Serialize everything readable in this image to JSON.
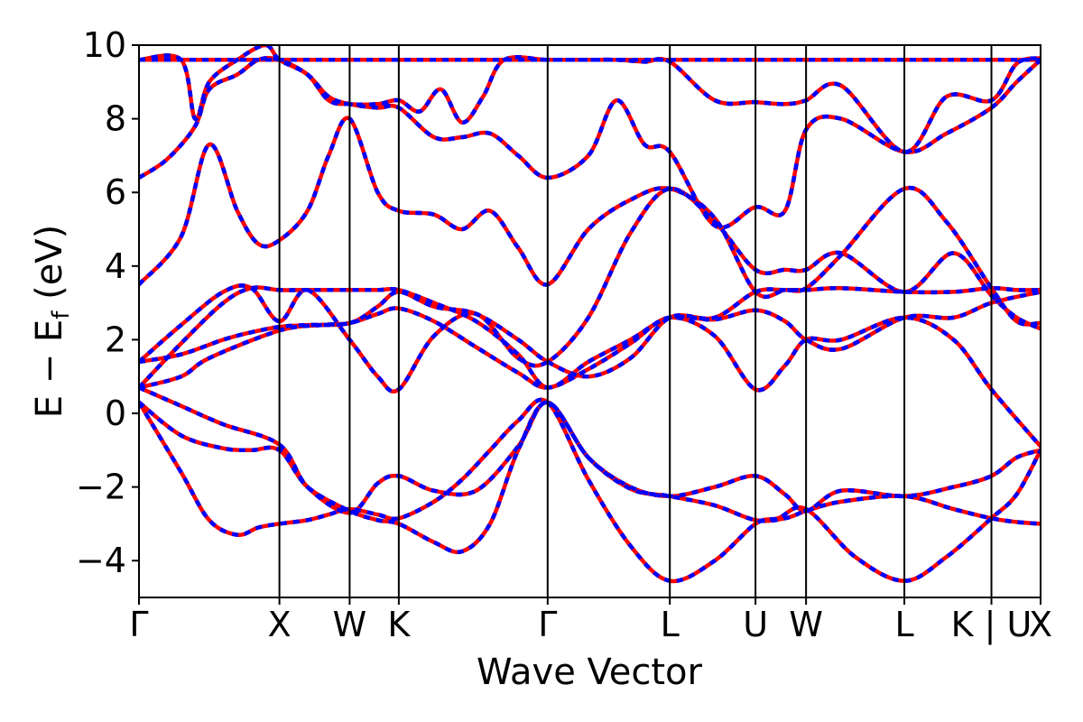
{
  "chart_data": {
    "type": "line",
    "title": "",
    "xlabel": "Wave Vector",
    "ylabel_main": "E − E",
    "ylabel_sub": "f",
    "ylabel_unit": " (eV)",
    "ylim": [
      -5,
      10
    ],
    "yticks": [
      -4,
      -2,
      0,
      2,
      4,
      6,
      8,
      10
    ],
    "ytick_labels": [
      "−4",
      "−2",
      "0",
      "2",
      "4",
      "6",
      "8",
      "10"
    ],
    "xlim": [
      0,
      6.42
    ],
    "kpoints": [
      {
        "label": "Γ",
        "x": 0.0
      },
      {
        "label": "X",
        "x": 1.0
      },
      {
        "label": "W",
        "x": 1.5
      },
      {
        "label": "K",
        "x": 1.85
      },
      {
        "label": "Γ",
        "x": 2.91
      },
      {
        "label": "L",
        "x": 3.78
      },
      {
        "label": "U",
        "x": 4.39
      },
      {
        "label": "W",
        "x": 4.75
      },
      {
        "label": "L",
        "x": 5.45
      },
      {
        "label": "K | U",
        "x": 6.07
      },
      {
        "label": "X",
        "x": 6.42
      }
    ],
    "series": [
      {
        "color": "#ff0000",
        "style": "solid",
        "x": [
          0,
          0.3,
          0.5,
          0.7,
          0.85,
          1.0,
          1.2,
          1.35,
          1.5,
          1.7,
          1.85,
          2.1,
          2.3,
          2.5,
          2.7,
          2.91,
          3.2,
          3.5,
          3.78,
          4.1,
          4.39,
          4.55,
          4.75,
          5.1,
          5.45,
          5.75,
          6.07,
          6.25,
          6.42
        ],
        "values": [
          0.3,
          -1.6,
          -2.9,
          -3.3,
          -3.1,
          -3.0,
          -2.9,
          -2.75,
          -2.6,
          -2.75,
          -2.85,
          -2.4,
          -1.8,
          -1.0,
          -0.2,
          0.3,
          -1.8,
          -3.6,
          -4.55,
          -4.0,
          -3.0,
          -2.85,
          -2.6,
          -3.9,
          -4.55,
          -3.9,
          -2.85,
          -2.2,
          -1.0
        ]
      },
      {
        "color": "#ff0000",
        "style": "solid",
        "x": [
          0,
          0.3,
          0.6,
          0.8,
          1.0,
          1.2,
          1.5,
          1.7,
          1.85,
          2.1,
          2.3,
          2.5,
          2.7,
          2.91,
          3.2,
          3.5,
          3.78,
          4.1,
          4.39,
          4.6,
          4.75,
          5.0,
          5.45,
          5.8,
          6.07,
          6.25,
          6.42
        ],
        "values": [
          0.3,
          -0.6,
          -0.95,
          -1.0,
          -1.0,
          -2.0,
          -2.65,
          -2.9,
          -3.0,
          -3.5,
          -3.75,
          -3.0,
          -1.0,
          0.3,
          -1.2,
          -2.0,
          -2.25,
          -2.0,
          -1.7,
          -2.2,
          -2.65,
          -2.1,
          -2.25,
          -2.0,
          -1.7,
          -1.2,
          -1.0
        ]
      },
      {
        "color": "#ff0000",
        "style": "solid",
        "x": [
          0,
          0.3,
          0.6,
          1.0,
          1.2,
          1.5,
          1.7,
          1.85,
          2.1,
          2.4,
          2.7,
          2.91,
          3.2,
          3.5,
          3.78,
          4.1,
          4.39,
          4.6,
          4.75,
          5.0,
          5.45,
          5.8,
          6.07,
          6.25,
          6.42
        ],
        "values": [
          0.7,
          0.2,
          -0.3,
          -0.85,
          -2.0,
          -2.7,
          -1.9,
          -1.7,
          -2.1,
          -2.1,
          -0.9,
          0.3,
          -1.2,
          -2.05,
          -2.25,
          -2.5,
          -2.9,
          -2.85,
          -2.65,
          -2.4,
          -2.25,
          -2.6,
          -2.85,
          -2.95,
          -3.0
        ]
      },
      {
        "color": "#ff0000",
        "style": "solid",
        "x": [
          0,
          0.3,
          0.5,
          1.0,
          1.3,
          1.5,
          1.7,
          1.85,
          2.1,
          2.4,
          2.7,
          2.91,
          3.2,
          3.5,
          3.78,
          4.1,
          4.39,
          4.6,
          4.75,
          5.0,
          5.45,
          5.8,
          6.07,
          6.42
        ],
        "values": [
          0.7,
          1.0,
          1.5,
          2.25,
          2.4,
          2.45,
          2.7,
          2.85,
          2.5,
          1.8,
          1.1,
          0.7,
          1.2,
          1.9,
          2.6,
          2.1,
          0.65,
          1.3,
          2.0,
          2.0,
          2.6,
          2.0,
          0.65,
          -0.9
        ]
      },
      {
        "color": "#ff0000",
        "style": "solid",
        "x": [
          0,
          0.3,
          0.6,
          0.8,
          1.0,
          1.2,
          1.5,
          1.7,
          1.85,
          2.1,
          2.4,
          2.7,
          2.91,
          3.2,
          3.5,
          3.78,
          4.1,
          4.39,
          4.6,
          4.75,
          5.0,
          5.45,
          5.8,
          6.07,
          6.42
        ],
        "values": [
          0.7,
          1.9,
          3.0,
          3.4,
          3.35,
          3.35,
          3.35,
          3.35,
          3.35,
          3.0,
          2.5,
          1.6,
          0.7,
          1.4,
          2.0,
          2.6,
          2.55,
          2.8,
          2.5,
          2.0,
          1.75,
          2.6,
          2.6,
          3.0,
          3.3
        ]
      },
      {
        "color": "#ff0000",
        "style": "solid",
        "x": [
          0,
          0.3,
          0.6,
          0.8,
          1.0,
          1.2,
          1.5,
          1.7,
          1.85,
          2.1,
          2.4,
          2.7,
          2.91,
          3.2,
          3.5,
          3.78,
          4.1,
          4.39,
          4.6,
          4.75,
          5.0,
          5.45,
          5.8,
          6.07,
          6.25,
          6.42
        ],
        "values": [
          1.4,
          1.6,
          2.0,
          2.2,
          2.35,
          2.4,
          2.45,
          2.9,
          3.3,
          2.9,
          2.7,
          2.0,
          1.4,
          1.0,
          1.5,
          2.6,
          2.6,
          3.3,
          3.35,
          3.35,
          3.4,
          3.3,
          3.3,
          3.4,
          3.35,
          3.35
        ]
      },
      {
        "color": "#ff0000",
        "style": "solid",
        "x": [
          0,
          0.3,
          0.6,
          0.8,
          1.0,
          1.2,
          1.5,
          1.7,
          1.85,
          2.1,
          2.4,
          2.7,
          2.91,
          3.2,
          3.5,
          3.78,
          4.1,
          4.39,
          4.6,
          4.75,
          5.0,
          5.45,
          5.8,
          6.07,
          6.25,
          6.42
        ],
        "values": [
          1.4,
          2.4,
          3.3,
          3.4,
          2.5,
          3.35,
          2.0,
          1.0,
          0.65,
          2.1,
          2.7,
          1.5,
          1.4,
          2.6,
          4.9,
          6.1,
          5.2,
          3.9,
          3.9,
          3.9,
          4.35,
          3.3,
          4.35,
          3.2,
          2.6,
          2.3
        ]
      },
      {
        "color": "#ff0000",
        "style": "solid",
        "x": [
          0,
          0.3,
          0.5,
          0.7,
          0.85,
          1.0,
          1.2,
          1.35,
          1.5,
          1.7,
          1.85,
          2.1,
          2.3,
          2.5,
          2.7,
          2.91,
          3.2,
          3.5,
          3.78,
          4.1,
          4.39,
          4.6,
          4.75,
          5.0,
          5.45,
          5.75,
          6.07,
          6.25,
          6.42
        ],
        "values": [
          3.5,
          4.8,
          7.3,
          5.5,
          4.6,
          4.7,
          5.5,
          7.0,
          8.0,
          6.0,
          5.5,
          5.4,
          5.0,
          5.5,
          4.5,
          3.5,
          5.0,
          5.8,
          6.1,
          5.3,
          3.3,
          3.35,
          3.4,
          4.3,
          6.1,
          5.2,
          3.4,
          2.5,
          2.45
        ]
      },
      {
        "color": "#ff0000",
        "style": "solid",
        "x": [
          0,
          0.2,
          0.4,
          0.5,
          0.7,
          0.85,
          1.0,
          1.2,
          1.35,
          1.5,
          1.7,
          1.85,
          2.1,
          2.3,
          2.5,
          2.7,
          2.91,
          3.2,
          3.4,
          3.6,
          3.78,
          4.1,
          4.39,
          4.6,
          4.75,
          5.0,
          5.45,
          5.75,
          6.07,
          6.25,
          6.42
        ],
        "values": [
          6.4,
          6.9,
          7.8,
          8.8,
          9.2,
          9.6,
          9.6,
          9.2,
          8.6,
          8.4,
          8.3,
          8.3,
          7.5,
          7.5,
          7.6,
          7.0,
          6.4,
          7.0,
          8.5,
          7.3,
          7.1,
          5.1,
          5.6,
          5.5,
          7.7,
          8.0,
          7.1,
          7.6,
          8.3,
          9.0,
          9.6
        ]
      },
      {
        "color": "#ff0000",
        "style": "solid",
        "x": [
          0,
          0.3,
          0.4,
          0.5,
          0.7,
          0.9,
          1.0,
          1.2,
          1.35,
          1.5,
          1.7,
          1.85,
          2.0,
          2.15,
          2.3,
          2.45,
          2.6,
          2.91,
          3.2,
          3.4,
          3.6,
          3.78,
          4.1,
          4.39,
          4.6,
          4.75,
          5.0,
          5.45,
          5.75,
          6.07,
          6.25,
          6.42
        ],
        "values": [
          9.6,
          9.6,
          8.0,
          9.0,
          9.6,
          10.0,
          9.6,
          9.2,
          8.5,
          8.4,
          8.4,
          8.5,
          8.2,
          8.8,
          7.9,
          8.6,
          9.6,
          9.6,
          9.6,
          9.6,
          9.55,
          9.55,
          8.5,
          8.45,
          8.4,
          8.5,
          8.9,
          7.1,
          8.6,
          8.5,
          9.5,
          9.65
        ]
      },
      {
        "color": "#ff0000",
        "style": "solid",
        "x": [
          0,
          0.3,
          0.6,
          0.8,
          1.0,
          1.2,
          1.5,
          1.7,
          1.85,
          2.0,
          2.2,
          2.4,
          2.6,
          2.91,
          3.2,
          3.5,
          3.78,
          4.1,
          4.39,
          4.75,
          5.1,
          5.45,
          5.8,
          6.07,
          6.42
        ],
        "values": [
          9.6,
          9.6,
          9.6,
          9.6,
          9.6,
          9.6,
          9.6,
          9.6,
          9.6,
          9.6,
          9.6,
          9.6,
          9.6,
          9.6,
          9.6,
          9.6,
          9.6,
          9.6,
          9.6,
          9.6,
          9.6,
          9.6,
          9.6,
          9.6,
          9.6
        ]
      }
    ]
  }
}
